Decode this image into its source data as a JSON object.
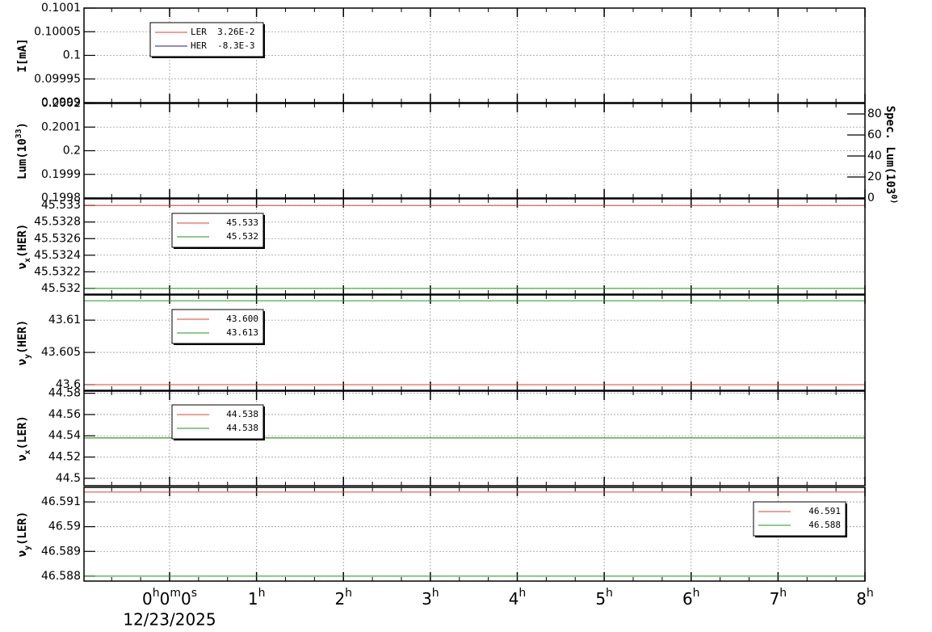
{
  "chart_data": [
    {
      "type": "line",
      "ylabel": "I[mA]",
      "ylim": [
        0.0999,
        0.1001
      ],
      "yticks": [
        0.0999,
        0.09995,
        0.1,
        0.10005,
        0.1001
      ],
      "grid": true,
      "series": [
        {
          "name": "LER  3.26E-2",
          "color": "#e04030"
        },
        {
          "name": "HER  -8.3E-3",
          "color": "#1a1aa0"
        }
      ]
    },
    {
      "type": "line",
      "ylabel": "Lum(1033)",
      "ylim": [
        0.1998,
        0.2002
      ],
      "yticks": [
        0.1998,
        0.1999,
        0.2,
        0.2001,
        0.2002
      ],
      "grid": true,
      "y2label": "Spec. Lum(1030)",
      "y2lim": [
        0,
        90
      ],
      "y2ticks": [
        0,
        20,
        40,
        60,
        80
      ]
    },
    {
      "type": "line",
      "ylabel": "νx(HER)",
      "ylim": [
        45.53193,
        45.53308
      ],
      "yticks": [
        45.532,
        45.5322,
        45.5324,
        45.5326,
        45.5328,
        45.533
      ],
      "grid": true,
      "series": [
        {
          "name": "45.533",
          "color": "#e04030",
          "value": 45.533
        },
        {
          "name": "45.532",
          "color": "#1a9a1a",
          "value": 45.532
        }
      ]
    },
    {
      "type": "line",
      "ylabel": "νy(HER)",
      "ylim": [
        43.59912,
        43.6139
      ],
      "yticks": [
        43.6,
        43.605,
        43.61
      ],
      "grid": true,
      "series": [
        {
          "name": "43.600",
          "color": "#e04030",
          "value": 43.6
        },
        {
          "name": "43.613",
          "color": "#1a9a1a",
          "value": 43.613
        }
      ]
    },
    {
      "type": "line",
      "ylabel": "νx(LER)",
      "ylim": [
        44.493,
        44.582
      ],
      "yticks": [
        44.5,
        44.52,
        44.54,
        44.56,
        44.58
      ],
      "grid": true,
      "series": [
        {
          "name": "44.538",
          "color": "#e04030",
          "value": 44.538
        },
        {
          "name": "44.538",
          "color": "#1a9a1a",
          "value": 44.538
        }
      ]
    },
    {
      "type": "line",
      "ylabel": "νy(LER)",
      "ylim": [
        46.5878,
        46.59159
      ],
      "yticks": [
        46.588,
        46.589,
        46.59,
        46.591
      ],
      "grid": true,
      "series": [
        {
          "name": "46.591",
          "color": "#e04030",
          "value": 46.5914
        },
        {
          "name": "46.588",
          "color": "#1a9a1a",
          "value": 46.588
        }
      ],
      "xlim": [
        -0.985,
        8
      ],
      "xticks": [
        {
          "value": 0,
          "label": "0h0m0s"
        },
        {
          "value": 1,
          "label": "1h"
        },
        {
          "value": 2,
          "label": "2h"
        },
        {
          "value": 3,
          "label": "3h"
        },
        {
          "value": 4,
          "label": "4h"
        },
        {
          "value": 5,
          "label": "5h"
        },
        {
          "value": 6,
          "label": "6h"
        },
        {
          "value": 7,
          "label": "7h"
        },
        {
          "value": 8,
          "label": "8h"
        }
      ],
      "xlabel": "12/23/2025"
    }
  ]
}
